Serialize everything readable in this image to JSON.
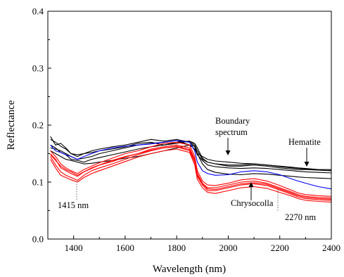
{
  "chart_data": {
    "type": "line",
    "title": "",
    "xlabel": "Wavelength (nm)",
    "ylabel": "Reflectance",
    "xlim": [
      1300,
      2400
    ],
    "ylim": [
      0.0,
      0.4
    ],
    "x_ticks": [
      1400,
      1600,
      1800,
      2000,
      2200,
      2400
    ],
    "y_ticks": [
      0.0,
      0.1,
      0.2,
      0.3,
      0.4
    ],
    "x_tick_labels": [
      "1400",
      "1600",
      "1800",
      "2000",
      "2200",
      "2400"
    ],
    "y_tick_labels": [
      "0.0",
      "0.1",
      "0.2",
      "0.3",
      "0.4"
    ],
    "grid": false,
    "legend": "none",
    "x": [
      1310,
      1330,
      1350,
      1370,
      1390,
      1415,
      1440,
      1470,
      1500,
      1550,
      1600,
      1650,
      1700,
      1750,
      1800,
      1850,
      1870,
      1880,
      1900,
      1920,
      1950,
      2000,
      2050,
      2100,
      2150,
      2200,
      2250,
      2270,
      2300,
      2350,
      2400
    ],
    "series": [
      {
        "color": "#000000",
        "values": [
          0.18,
          0.165,
          0.168,
          0.16,
          0.15,
          0.145,
          0.15,
          0.152,
          0.155,
          0.158,
          0.162,
          0.168,
          0.17,
          0.165,
          0.17,
          0.172,
          0.165,
          0.155,
          0.14,
          0.135,
          0.132,
          0.128,
          0.128,
          0.13,
          0.128,
          0.125,
          0.123,
          0.122,
          0.122,
          0.121,
          0.12
        ]
      },
      {
        "color": "#000000",
        "values": [
          0.175,
          0.17,
          0.163,
          0.158,
          0.15,
          0.148,
          0.15,
          0.155,
          0.158,
          0.162,
          0.165,
          0.17,
          0.175,
          0.172,
          0.175,
          0.17,
          0.162,
          0.15,
          0.145,
          0.14,
          0.137,
          0.135,
          0.133,
          0.132,
          0.13,
          0.128,
          0.126,
          0.125,
          0.124,
          0.122,
          0.122
        ]
      },
      {
        "color": "#000000",
        "values": [
          0.16,
          0.158,
          0.155,
          0.15,
          0.145,
          0.14,
          0.142,
          0.145,
          0.15,
          0.155,
          0.16,
          0.165,
          0.168,
          0.17,
          0.173,
          0.165,
          0.158,
          0.148,
          0.138,
          0.13,
          0.127,
          0.125,
          0.124,
          0.125,
          0.124,
          0.122,
          0.12,
          0.119,
          0.118,
          0.117,
          0.116
        ]
      },
      {
        "color": "#000000",
        "values": [
          0.165,
          0.16,
          0.152,
          0.148,
          0.14,
          0.138,
          0.135,
          0.14,
          0.143,
          0.148,
          0.153,
          0.158,
          0.162,
          0.165,
          0.168,
          0.172,
          0.168,
          0.16,
          0.142,
          0.135,
          0.132,
          0.13,
          0.13,
          0.132,
          0.13,
          0.127,
          0.125,
          0.124,
          0.123,
          0.121,
          0.12
        ]
      },
      {
        "color": "#000000",
        "values": [
          0.155,
          0.15,
          0.145,
          0.14,
          0.138,
          0.135,
          0.132,
          0.133,
          0.135,
          0.138,
          0.142,
          0.145,
          0.15,
          0.155,
          0.16,
          0.165,
          0.163,
          0.15,
          0.132,
          0.122,
          0.117,
          0.114,
          0.113,
          0.115,
          0.114,
          0.112,
          0.11,
          0.109,
          0.108,
          0.107,
          0.106
        ]
      },
      {
        "color": "#0000ff",
        "values": [
          0.165,
          0.155,
          0.152,
          0.148,
          0.145,
          0.14,
          0.145,
          0.15,
          0.155,
          0.16,
          0.163,
          0.165,
          0.167,
          0.17,
          0.173,
          0.17,
          0.155,
          0.135,
          0.12,
          0.115,
          0.112,
          0.113,
          0.118,
          0.12,
          0.118,
          0.113,
          0.105,
          0.102,
          0.098,
          0.092,
          0.088
        ]
      },
      {
        "color": "#ff0000",
        "values": [
          0.15,
          0.14,
          0.125,
          0.12,
          0.115,
          0.11,
          0.118,
          0.125,
          0.13,
          0.138,
          0.145,
          0.15,
          0.158,
          0.162,
          0.165,
          0.16,
          0.14,
          0.115,
          0.098,
          0.09,
          0.09,
          0.095,
          0.1,
          0.102,
          0.098,
          0.09,
          0.082,
          0.078,
          0.075,
          0.073,
          0.072
        ]
      },
      {
        "color": "#ff0000",
        "values": [
          0.145,
          0.13,
          0.118,
          0.112,
          0.108,
          0.103,
          0.112,
          0.12,
          0.125,
          0.132,
          0.14,
          0.148,
          0.155,
          0.16,
          0.162,
          0.155,
          0.135,
          0.11,
          0.095,
          0.085,
          0.085,
          0.09,
          0.095,
          0.097,
          0.094,
          0.086,
          0.078,
          0.074,
          0.071,
          0.069,
          0.068
        ]
      },
      {
        "color": "#ff0000",
        "values": [
          0.155,
          0.145,
          0.132,
          0.125,
          0.12,
          0.115,
          0.122,
          0.128,
          0.134,
          0.142,
          0.15,
          0.155,
          0.162,
          0.168,
          0.17,
          0.165,
          0.145,
          0.12,
          0.102,
          0.095,
          0.094,
          0.098,
          0.104,
          0.106,
          0.102,
          0.094,
          0.085,
          0.081,
          0.078,
          0.076,
          0.075
        ]
      },
      {
        "color": "#ff0000",
        "values": [
          0.14,
          0.125,
          0.112,
          0.108,
          0.104,
          0.1,
          0.108,
          0.115,
          0.12,
          0.128,
          0.136,
          0.144,
          0.15,
          0.155,
          0.158,
          0.152,
          0.13,
          0.105,
          0.09,
          0.082,
          0.08,
          0.085,
          0.09,
          0.092,
          0.089,
          0.082,
          0.075,
          0.071,
          0.068,
          0.066,
          0.065
        ]
      },
      {
        "color": "#ff0000",
        "values": [
          0.148,
          0.138,
          0.128,
          0.122,
          0.118,
          0.112,
          0.118,
          0.124,
          0.13,
          0.136,
          0.144,
          0.15,
          0.156,
          0.16,
          0.163,
          0.157,
          0.138,
          0.112,
          0.097,
          0.088,
          0.087,
          0.092,
          0.097,
          0.099,
          0.096,
          0.088,
          0.08,
          0.076,
          0.073,
          0.071,
          0.07
        ]
      }
    ],
    "annotations": [
      {
        "text": "1415 nm",
        "x": 1415,
        "y": 0.103
      },
      {
        "text": "Boundary spectrum",
        "x": 2000,
        "y": 0.118
      },
      {
        "text": "Hematite",
        "x": 2270,
        "y": 0.123
      },
      {
        "text": "Chrysocolla",
        "x": 2100,
        "y": 0.097
      },
      {
        "text": "2270 nm",
        "x": 2270,
        "y": 0.074
      }
    ]
  },
  "annotations_text": {
    "wl_1415": "1415 nm",
    "boundary_line1": "Boundary",
    "boundary_line2": "spectrum",
    "hematite": "Hematite",
    "chrysocolla": "Chrysocolla",
    "wl_2270": "2270 nm"
  }
}
